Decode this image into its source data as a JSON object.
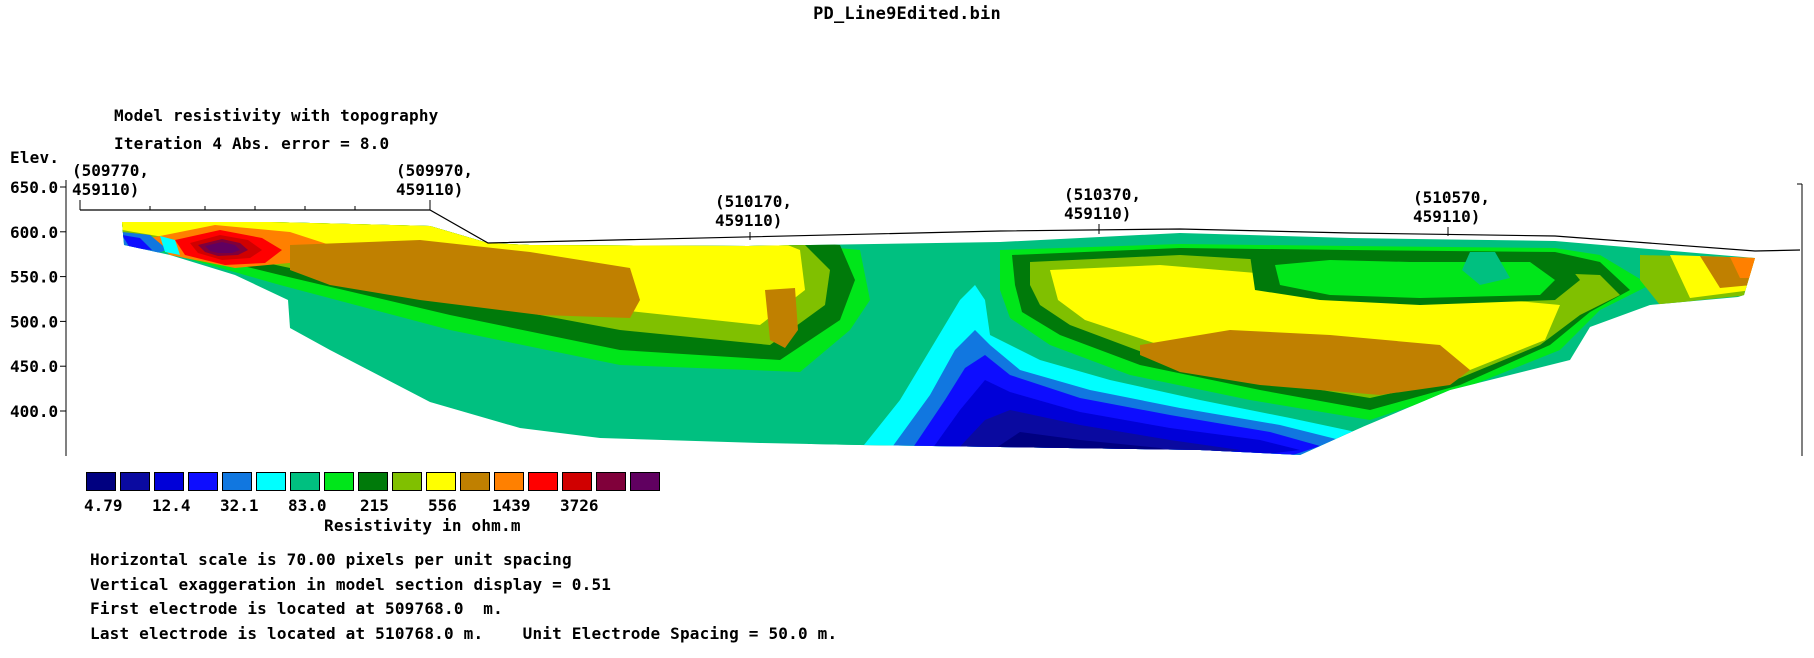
{
  "file_title": "PD_Line9Edited.bin",
  "section_title": "Model resistivity with topography",
  "iteration_line": "Iteration 4 Abs. error = 8.0",
  "chart_data": {
    "type": "heatmap",
    "title": "Model resistivity with topography",
    "ylabel": "Elev.",
    "y_ticks": [
      "650.0",
      "600.0",
      "550.0",
      "500.0",
      "450.0",
      "400.0"
    ],
    "y_tick_values": [
      650,
      600,
      550,
      500,
      450,
      400
    ],
    "ylim": [
      350,
      650
    ],
    "x_coordinate_labels": [
      {
        "easting": "(509770,",
        "northing": "459110)"
      },
      {
        "easting": "(509970,",
        "northing": "459110)"
      },
      {
        "easting": "(510170,",
        "northing": "459110)"
      },
      {
        "easting": "(510370,",
        "northing": "459110)"
      },
      {
        "easting": "(510570,",
        "northing": "459110)"
      }
    ],
    "colorbar": {
      "unit_label": "Resistivity in ohm.m",
      "colors": [
        "#000080",
        "#0a0aa0",
        "#0000d8",
        "#0d0dff",
        "#1177e0",
        "#00ffff",
        "#00c080",
        "#00e61a",
        "#007a0a",
        "#80c000",
        "#ffff00",
        "#c08000",
        "#ff8000",
        "#ff0000",
        "#d00000",
        "#80003a",
        "#600060"
      ],
      "labels": [
        "4.79",
        "12.4",
        "32.1",
        "83.0",
        "215",
        "556",
        "1439",
        "3726"
      ]
    },
    "grid": false,
    "legend_position": "bottom-left"
  },
  "footer": {
    "horizontal_scale": "Horizontal scale is 70.00 pixels per unit spacing",
    "vertical_exaggeration": "Vertical exaggeration in model section display = 0.51",
    "first_electrode": "First electrode is located at 509768.0  m.",
    "last_electrode": "Last electrode is located at 510768.0 m.    Unit Electrode Spacing = 50.0 m."
  }
}
